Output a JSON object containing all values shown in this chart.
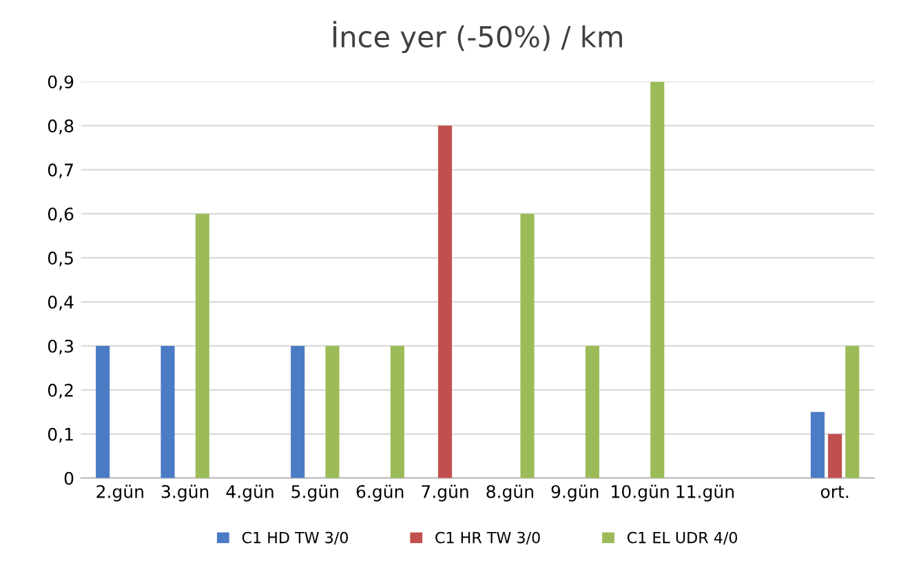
{
  "chart_data": {
    "type": "bar",
    "title": "İnce yer (-50%) / km",
    "categories": [
      "2.gün",
      "3.gün",
      "4.gün",
      "5.gün",
      "6.gün",
      "7.gün",
      "8.gün",
      "9.gün",
      "10.gün",
      "11.gün",
      null,
      "ort."
    ],
    "series": [
      {
        "name": "C1 HD TW 3/0",
        "color": "#4a7bc4",
        "values": [
          0.3,
          0.3,
          0,
          0.3,
          0,
          0,
          null,
          null,
          null,
          null,
          null,
          0.15
        ]
      },
      {
        "name": "C1 HR TW 3/0",
        "color": "#c0504d",
        "values": [
          0,
          0,
          0,
          0,
          0,
          0.8,
          0,
          0,
          null,
          null,
          null,
          0.1
        ]
      },
      {
        "name": "C1 EL UDR 4/0",
        "color": "#9bbb59",
        "values": [
          0,
          0.6,
          0,
          0.3,
          0.3,
          0,
          0.6,
          0.3,
          0.9,
          0,
          null,
          0.3
        ]
      }
    ],
    "ylim": [
      0,
      0.9
    ],
    "yticks": [
      {
        "value": 0,
        "label": "0"
      },
      {
        "value": 0.1,
        "label": "0,1"
      },
      {
        "value": 0.2,
        "label": "0,2"
      },
      {
        "value": 0.3,
        "label": "0,3"
      },
      {
        "value": 0.4,
        "label": "0,4"
      },
      {
        "value": 0.5,
        "label": "0,5"
      },
      {
        "value": 0.6,
        "label": "0,6"
      },
      {
        "value": 0.7,
        "label": "0,7"
      },
      {
        "value": 0.8,
        "label": "0,8"
      },
      {
        "value": 0.9,
        "label": "0,9"
      }
    ],
    "grid": "y",
    "legend": "bottom"
  }
}
